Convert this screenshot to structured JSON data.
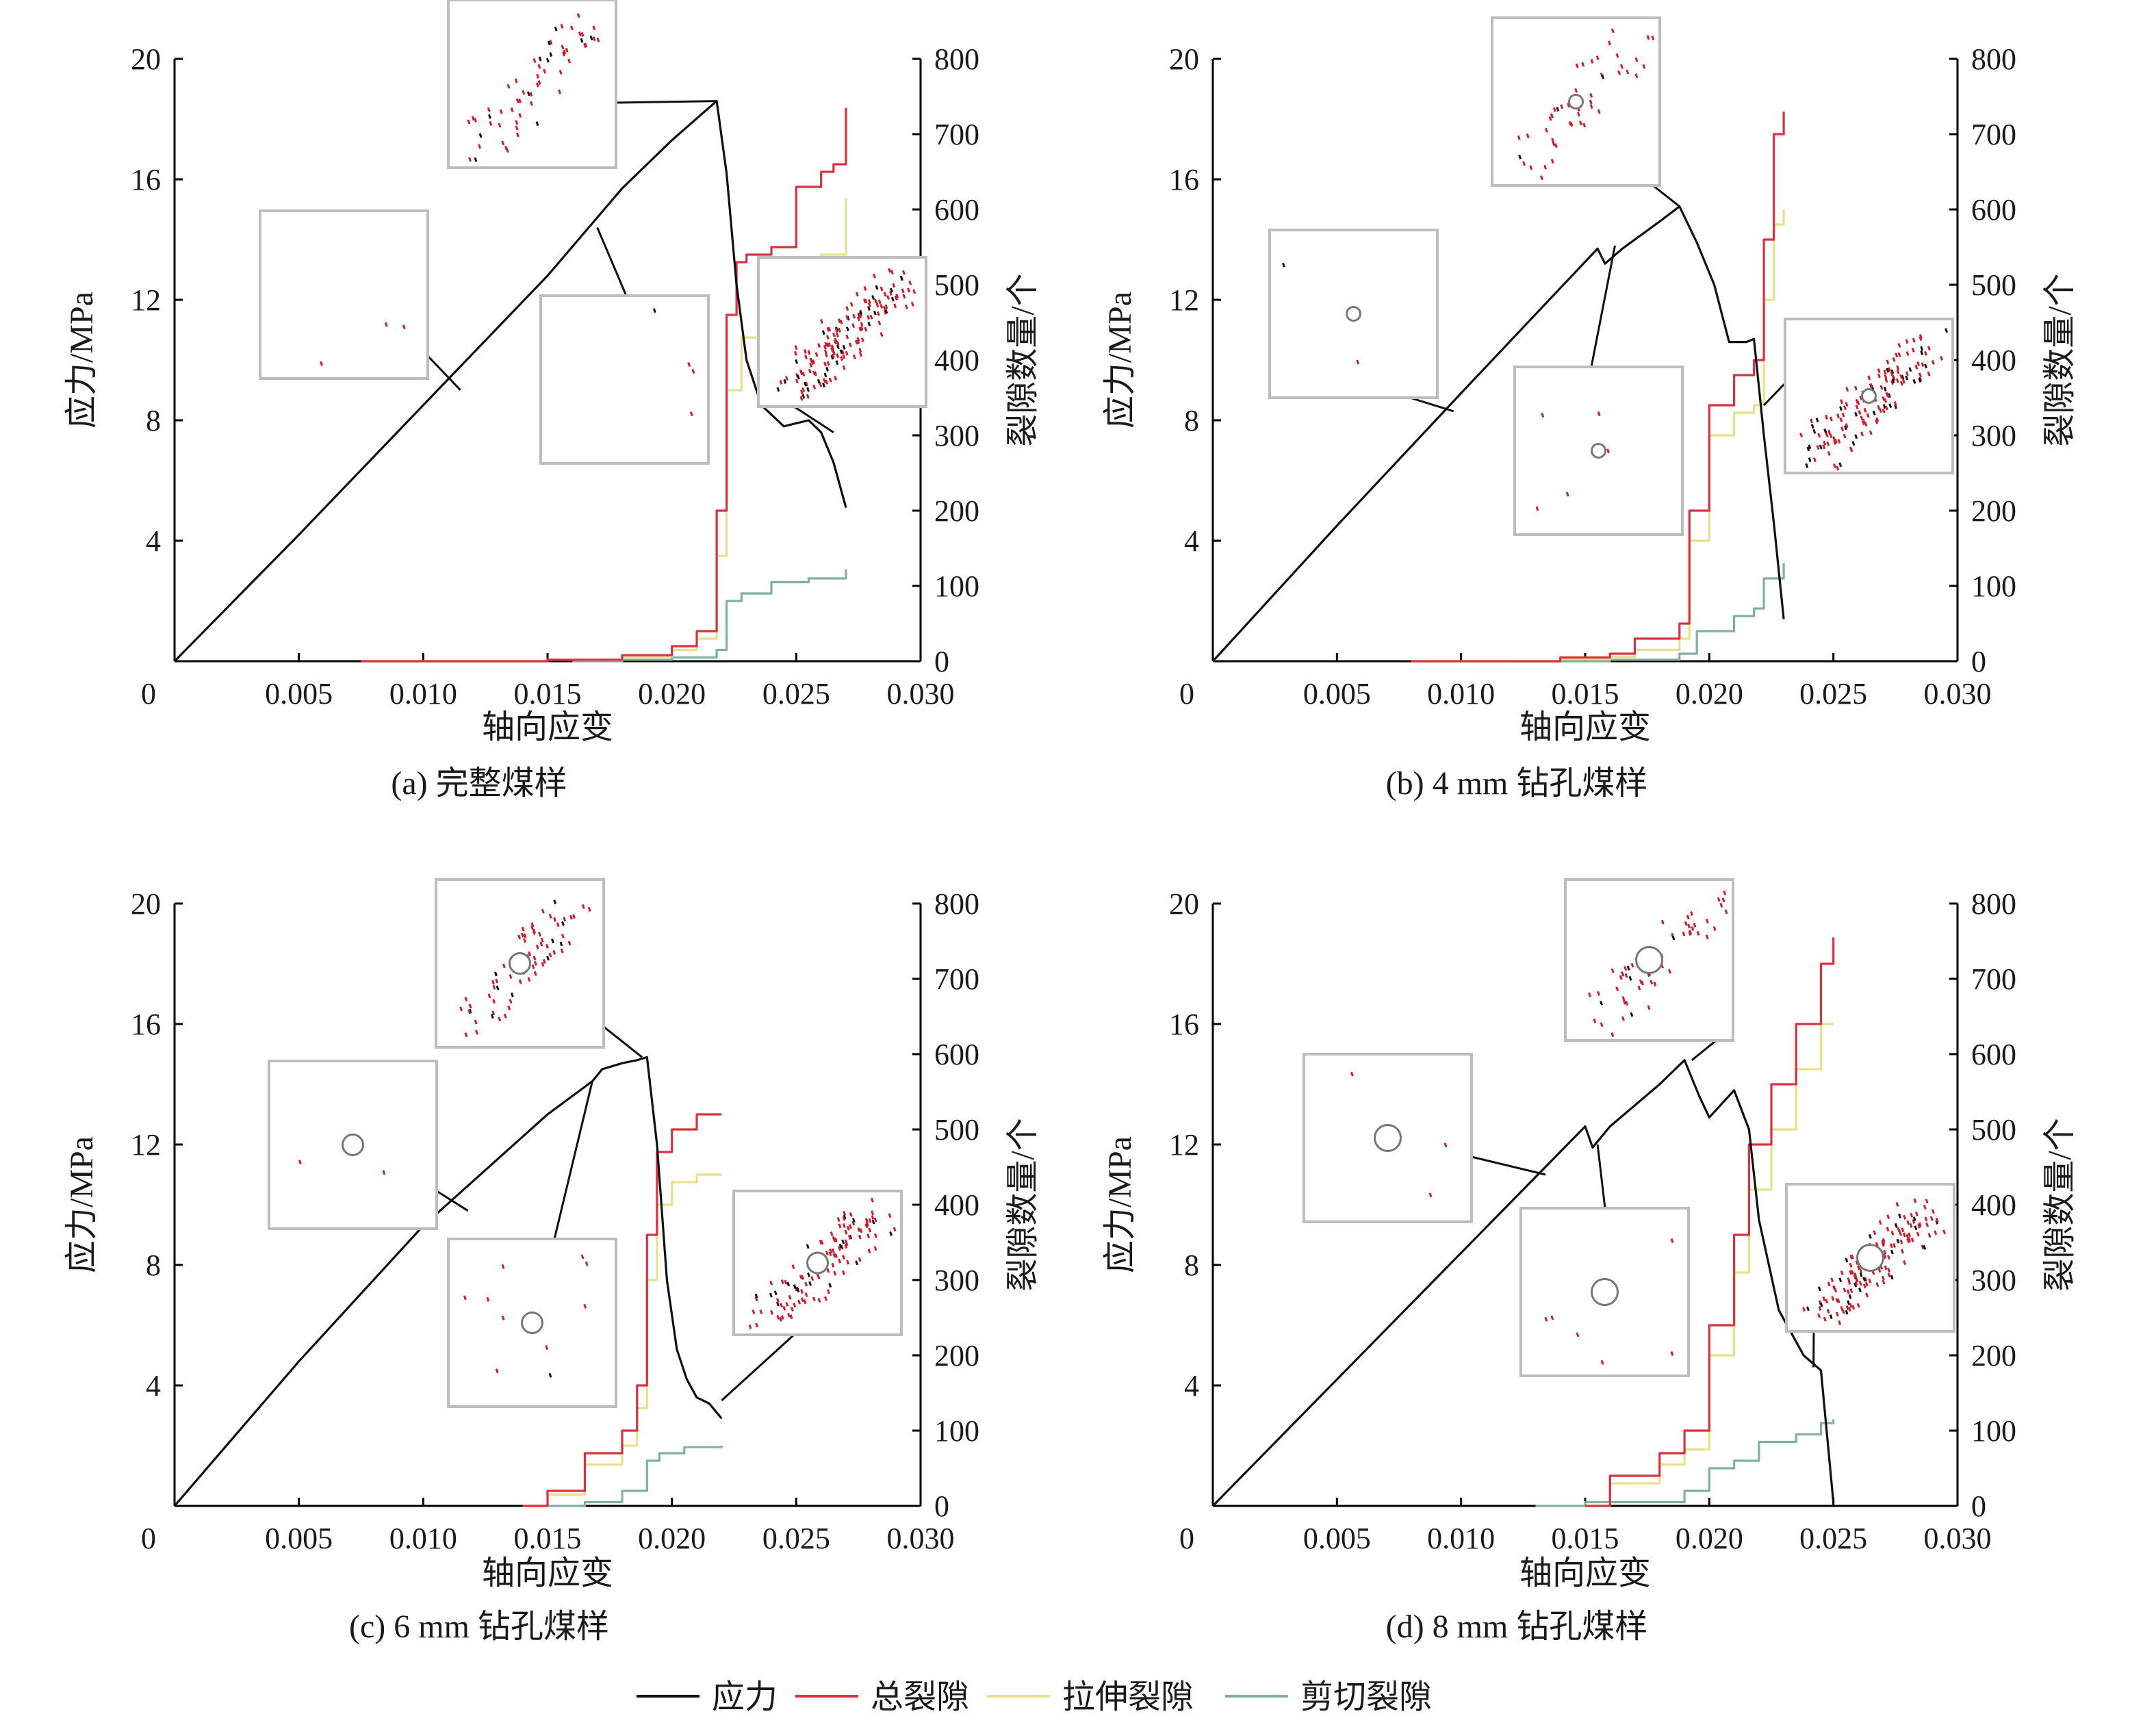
{
  "figure": {
    "x_axis_label": "轴向应变",
    "y_left_label": "应力/MPa",
    "y_right_label": "裂隙数量/个",
    "x_ticks": [
      "0",
      "0.005",
      "0.010",
      "0.015",
      "0.020",
      "0.025",
      "0.030"
    ],
    "y_left_ticks": [
      "4",
      "8",
      "12",
      "16",
      "20"
    ],
    "y_right_ticks": [
      "0",
      "100",
      "200",
      "300",
      "400",
      "500",
      "600",
      "700",
      "800"
    ],
    "colors": {
      "stress": "#111111",
      "total_cracks": "#d9313f",
      "tensile_cracks": "#e8e08a",
      "shear_cracks": "#7fb0a0",
      "inset_border": "#bdbdbd",
      "crack_red": "#cc1f2e",
      "crack_black": "#111111"
    }
  },
  "legend": {
    "stress": "应力",
    "total": "总裂隙",
    "tensile": "拉伸裂隙",
    "shear": "剪切裂隙"
  },
  "chart_data": [
    {
      "type": "line",
      "caption": "(a) 完整煤样",
      "xlim": [
        0,
        0.03
      ],
      "ylim_left": [
        0,
        20
      ],
      "ylim_right": [
        0,
        800
      ],
      "series": [
        {
          "name": "应力",
          "axis": "left",
          "x": [
            0,
            0.005,
            0.01,
            0.015,
            0.018,
            0.02,
            0.0218,
            0.0222,
            0.0226,
            0.023,
            0.0236,
            0.0245,
            0.0255,
            0.026,
            0.0265,
            0.027
          ],
          "y": [
            0,
            4.2,
            8.5,
            12.8,
            15.7,
            17.3,
            18.6,
            16.2,
            12.5,
            10.0,
            8.5,
            7.8,
            8.0,
            7.6,
            6.6,
            5.1
          ]
        },
        {
          "name": "总裂隙",
          "axis": "right",
          "x": [
            0.0075,
            0.015,
            0.018,
            0.02,
            0.021,
            0.0218,
            0.0222,
            0.0226,
            0.023,
            0.024,
            0.025,
            0.026,
            0.0265,
            0.027
          ],
          "y": [
            0,
            2,
            8,
            20,
            40,
            200,
            460,
            530,
            540,
            550,
            630,
            650,
            660,
            735
          ]
        },
        {
          "name": "拉伸裂隙",
          "axis": "right",
          "x": [
            0.0075,
            0.015,
            0.018,
            0.02,
            0.021,
            0.0218,
            0.0222,
            0.0228,
            0.024,
            0.025,
            0.026,
            0.027
          ],
          "y": [
            0,
            2,
            6,
            15,
            30,
            140,
            360,
            430,
            470,
            490,
            540,
            615
          ]
        },
        {
          "name": "剪切裂隙",
          "axis": "right",
          "x": [
            0.016,
            0.018,
            0.02,
            0.0218,
            0.0222,
            0.0228,
            0.024,
            0.0255,
            0.027
          ],
          "y": [
            0,
            2,
            5,
            15,
            80,
            90,
            105,
            110,
            122
          ]
        }
      ]
    },
    {
      "type": "line",
      "caption": "(b) 4 mm 钻孔煤样",
      "xlim": [
        0,
        0.03
      ],
      "ylim_left": [
        0,
        20
      ],
      "ylim_right": [
        0,
        800
      ],
      "series": [
        {
          "name": "应力",
          "axis": "left",
          "x": [
            0,
            0.005,
            0.01,
            0.0155,
            0.0158,
            0.0165,
            0.018,
            0.0188,
            0.0195,
            0.0202,
            0.0208,
            0.0215,
            0.0218,
            0.0222,
            0.0226,
            0.023
          ],
          "y": [
            0,
            4.5,
            8.9,
            13.7,
            13.2,
            13.7,
            14.6,
            15.1,
            13.9,
            12.5,
            10.6,
            10.6,
            10.7,
            7.5,
            4.6,
            1.4
          ]
        },
        {
          "name": "总裂隙",
          "axis": "right",
          "x": [
            0.008,
            0.014,
            0.016,
            0.017,
            0.0188,
            0.0192,
            0.02,
            0.021,
            0.0218,
            0.0222,
            0.0226,
            0.023
          ],
          "y": [
            0,
            5,
            10,
            30,
            50,
            200,
            340,
            380,
            400,
            560,
            700,
            730
          ]
        },
        {
          "name": "拉伸裂隙",
          "axis": "right",
          "x": [
            0.008,
            0.014,
            0.016,
            0.017,
            0.0188,
            0.0192,
            0.02,
            0.021,
            0.0218,
            0.0222,
            0.0226,
            0.023
          ],
          "y": [
            0,
            3,
            6,
            15,
            30,
            160,
            300,
            330,
            340,
            480,
            580,
            600
          ]
        },
        {
          "name": "剪切裂隙",
          "axis": "right",
          "x": [
            0.012,
            0.016,
            0.0188,
            0.0195,
            0.021,
            0.0218,
            0.0222,
            0.023
          ],
          "y": [
            0,
            2,
            10,
            40,
            60,
            70,
            110,
            130
          ]
        }
      ]
    },
    {
      "type": "line",
      "caption": "(c) 6 mm 钻孔煤样",
      "xlim": [
        0,
        0.03
      ],
      "ylim_left": [
        0,
        20
      ],
      "ylim_right": [
        0,
        800
      ],
      "series": [
        {
          "name": "应力",
          "axis": "left",
          "x": [
            0,
            0.005,
            0.01,
            0.015,
            0.0168,
            0.0172,
            0.018,
            0.0186,
            0.019,
            0.0194,
            0.0198,
            0.0202,
            0.0206,
            0.021,
            0.0215,
            0.022
          ],
          "y": [
            0,
            4.8,
            9.3,
            13.0,
            14.1,
            14.5,
            14.7,
            14.8,
            14.9,
            12.0,
            7.5,
            5.2,
            4.2,
            3.6,
            3.4,
            2.9
          ]
        },
        {
          "name": "总裂隙",
          "axis": "right",
          "x": [
            0.014,
            0.015,
            0.0165,
            0.018,
            0.0186,
            0.019,
            0.0194,
            0.02,
            0.021,
            0.022
          ],
          "y": [
            0,
            20,
            70,
            100,
            160,
            360,
            470,
            500,
            520,
            520
          ]
        },
        {
          "name": "拉伸裂隙",
          "axis": "right",
          "x": [
            0.014,
            0.015,
            0.0165,
            0.018,
            0.0186,
            0.019,
            0.0194,
            0.02,
            0.021,
            0.022
          ],
          "y": [
            0,
            15,
            55,
            80,
            130,
            300,
            400,
            430,
            440,
            440
          ]
        },
        {
          "name": "剪切裂隙",
          "axis": "right",
          "x": [
            0.015,
            0.0165,
            0.018,
            0.019,
            0.0195,
            0.0205,
            0.022
          ],
          "y": [
            0,
            5,
            20,
            60,
            70,
            78,
            80
          ]
        }
      ]
    },
    {
      "type": "line",
      "caption": "(d) 8 mm 钻孔煤样",
      "xlim": [
        0,
        0.03
      ],
      "ylim_left": [
        0,
        20
      ],
      "ylim_right": [
        0,
        800
      ],
      "series": [
        {
          "name": "应力",
          "axis": "left",
          "x": [
            0,
            0.005,
            0.01,
            0.015,
            0.0153,
            0.016,
            0.018,
            0.019,
            0.0196,
            0.02,
            0.021,
            0.0216,
            0.022,
            0.0228,
            0.0238,
            0.0245,
            0.025
          ],
          "y": [
            0,
            4.2,
            8.4,
            12.6,
            11.9,
            12.6,
            14.0,
            14.8,
            13.6,
            12.9,
            13.8,
            12.5,
            9.5,
            6.5,
            5.0,
            4.5,
            0.1
          ]
        },
        {
          "name": "总裂隙",
          "axis": "right",
          "x": [
            0.015,
            0.016,
            0.018,
            0.019,
            0.02,
            0.021,
            0.0216,
            0.0225,
            0.0235,
            0.0245,
            0.025
          ],
          "y": [
            0,
            40,
            70,
            100,
            240,
            360,
            480,
            560,
            640,
            720,
            755
          ]
        },
        {
          "name": "拉伸裂隙",
          "axis": "right",
          "x": [
            0.015,
            0.016,
            0.018,
            0.019,
            0.02,
            0.021,
            0.0216,
            0.0225,
            0.0235,
            0.0245,
            0.025
          ],
          "y": [
            0,
            30,
            55,
            75,
            200,
            310,
            420,
            500,
            580,
            640,
            640
          ]
        },
        {
          "name": "剪切裂隙",
          "axis": "right",
          "x": [
            0.013,
            0.015,
            0.019,
            0.02,
            0.021,
            0.022,
            0.0235,
            0.0245,
            0.025
          ],
          "y": [
            0,
            5,
            20,
            50,
            60,
            85,
            95,
            110,
            115
          ]
        }
      ]
    }
  ]
}
